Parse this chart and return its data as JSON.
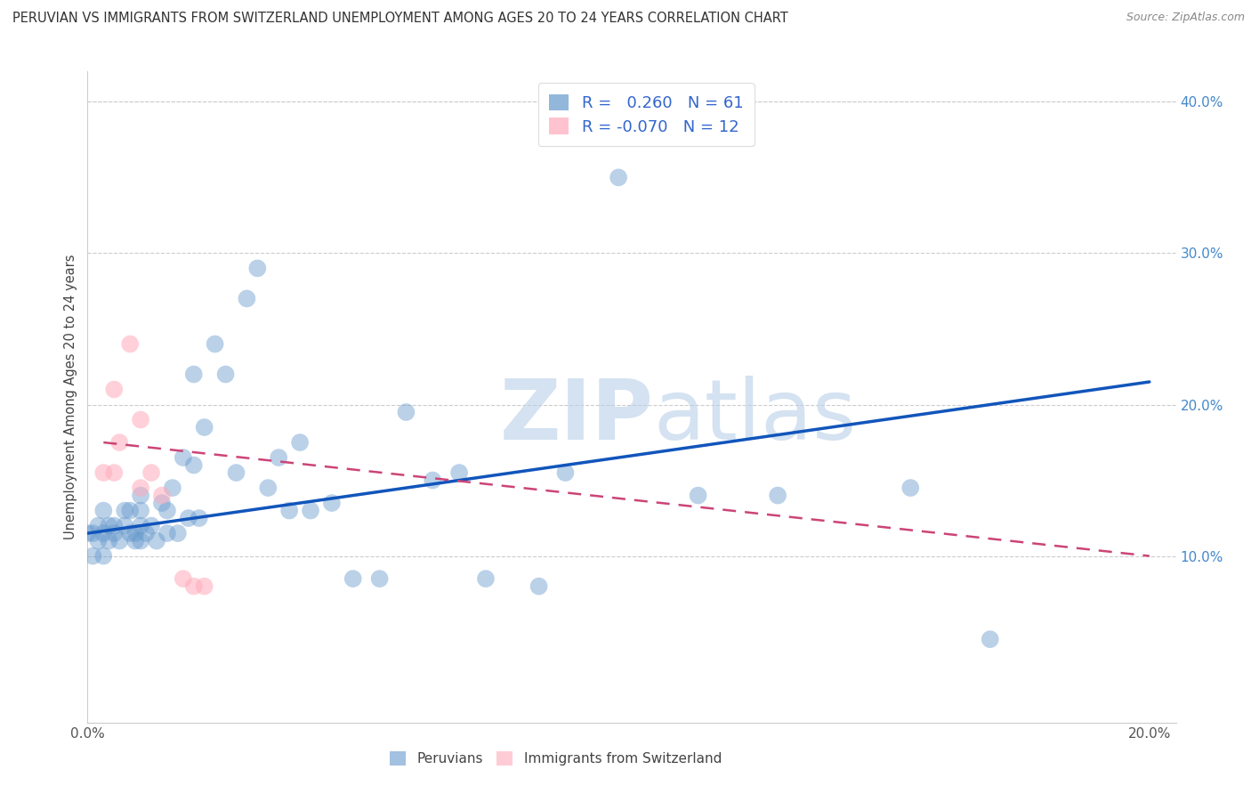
{
  "title": "PERUVIAN VS IMMIGRANTS FROM SWITZERLAND UNEMPLOYMENT AMONG AGES 20 TO 24 YEARS CORRELATION CHART",
  "source": "Source: ZipAtlas.com",
  "ylabel": "Unemployment Among Ages 20 to 24 years",
  "xlabel_peruvian": "Peruvians",
  "xlabel_swiss": "Immigrants from Switzerland",
  "xlim": [
    0.0,
    0.205
  ],
  "ylim": [
    -0.01,
    0.42
  ],
  "blue_color": "#6699cc",
  "blue_line_color": "#1155bb",
  "pink_color": "#ffaabb",
  "pink_line_color": "#cc4477",
  "R_blue": 0.26,
  "N_blue": 61,
  "R_pink": -0.07,
  "N_pink": 12,
  "watermark_zip": "ZIP",
  "watermark_atlas": "atlas",
  "peruvian_x": [
    0.0,
    0.001,
    0.001,
    0.002,
    0.002,
    0.003,
    0.003,
    0.003,
    0.004,
    0.004,
    0.005,
    0.005,
    0.006,
    0.007,
    0.007,
    0.008,
    0.008,
    0.009,
    0.009,
    0.01,
    0.01,
    0.01,
    0.01,
    0.011,
    0.012,
    0.013,
    0.014,
    0.015,
    0.015,
    0.016,
    0.017,
    0.018,
    0.019,
    0.02,
    0.02,
    0.021,
    0.022,
    0.024,
    0.026,
    0.028,
    0.03,
    0.032,
    0.034,
    0.036,
    0.038,
    0.04,
    0.042,
    0.046,
    0.05,
    0.055,
    0.06,
    0.065,
    0.07,
    0.075,
    0.085,
    0.09,
    0.1,
    0.115,
    0.13,
    0.155,
    0.17
  ],
  "peruvian_y": [
    0.115,
    0.1,
    0.115,
    0.11,
    0.12,
    0.1,
    0.115,
    0.13,
    0.11,
    0.12,
    0.115,
    0.12,
    0.11,
    0.12,
    0.13,
    0.115,
    0.13,
    0.11,
    0.115,
    0.11,
    0.12,
    0.13,
    0.14,
    0.115,
    0.12,
    0.11,
    0.135,
    0.115,
    0.13,
    0.145,
    0.115,
    0.165,
    0.125,
    0.16,
    0.22,
    0.125,
    0.185,
    0.24,
    0.22,
    0.155,
    0.27,
    0.29,
    0.145,
    0.165,
    0.13,
    0.175,
    0.13,
    0.135,
    0.085,
    0.085,
    0.195,
    0.15,
    0.155,
    0.085,
    0.08,
    0.155,
    0.35,
    0.14,
    0.14,
    0.145,
    0.045
  ],
  "swiss_x": [
    0.003,
    0.005,
    0.005,
    0.006,
    0.008,
    0.01,
    0.01,
    0.012,
    0.014,
    0.018,
    0.02,
    0.022
  ],
  "swiss_y": [
    0.155,
    0.21,
    0.155,
    0.175,
    0.24,
    0.19,
    0.145,
    0.155,
    0.14,
    0.085,
    0.08,
    0.08
  ],
  "blue_trend_x": [
    0.0,
    0.2
  ],
  "blue_trend_y": [
    0.115,
    0.215
  ],
  "pink_trend_x": [
    0.003,
    0.2
  ],
  "pink_trend_y": [
    0.175,
    0.1
  ],
  "yticks": [
    0.1,
    0.2,
    0.3,
    0.4
  ],
  "ytick_labels": [
    "10.0%",
    "20.0%",
    "30.0%",
    "40.0%"
  ],
  "xticks": [
    0.0,
    0.05,
    0.1,
    0.15,
    0.2
  ],
  "xtick_labels": [
    "0.0%",
    "",
    "",
    "",
    "20.0%"
  ]
}
